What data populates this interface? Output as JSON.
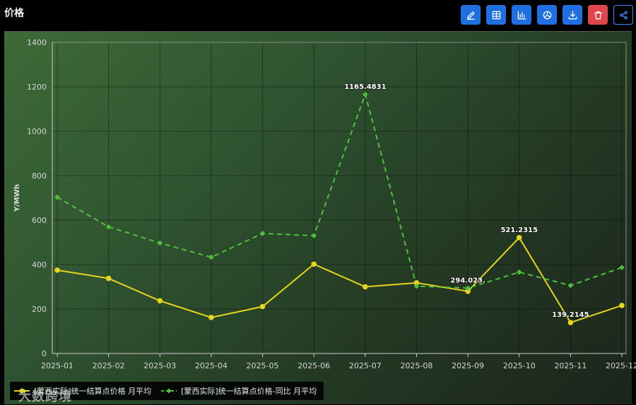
{
  "header": {
    "title": "价格",
    "buttons": [
      {
        "name": "edit-button",
        "icon": "pencil-icon"
      },
      {
        "name": "table-view-button",
        "icon": "table-icon"
      },
      {
        "name": "bar-chart-button",
        "icon": "bar-chart-icon"
      },
      {
        "name": "pie-chart-button",
        "icon": "pie-chart-icon"
      },
      {
        "name": "download-button",
        "icon": "download-icon"
      },
      {
        "name": "delete-button",
        "icon": "trash-icon"
      },
      {
        "name": "share-button",
        "icon": "share-icon"
      }
    ]
  },
  "colors": {
    "series1": "#e6d51c",
    "series2": "#4fbf3f",
    "toolbar_blue": "#1f6fe0",
    "toolbar_red": "#e0474c"
  },
  "watermark": "大数跨境",
  "chart_data": {
    "type": "line",
    "ylabel": "Y/MWh",
    "xlabel": "",
    "ylim": [
      0,
      1400
    ],
    "yticks": [
      0,
      200,
      400,
      600,
      800,
      1000,
      1200,
      1400
    ],
    "grid": true,
    "legend_position": "bottom-left",
    "categories": [
      "2025-01",
      "2025-02",
      "2025-03",
      "2025-04",
      "2025-05",
      "2025-06",
      "2025-07",
      "2025-08",
      "2025-09",
      "2025-10",
      "2025-11",
      "2025-12"
    ],
    "series": [
      {
        "name": "[蒙西实际]统一结算点价格 月平均",
        "style": "solid",
        "marker": "circle",
        "values": [
          375,
          338,
          237,
          162,
          211,
          402,
          300,
          318,
          280,
          521.2315,
          139.2145,
          216
        ]
      },
      {
        "name": "[蒙西实际]统一结算点价格-同比 月平均",
        "style": "dashed",
        "marker": "diamond",
        "values": [
          703,
          570,
          497,
          433,
          540,
          530,
          1165.4831,
          303,
          294.023,
          366,
          306,
          387
        ]
      }
    ],
    "annotations": [
      {
        "series": 1,
        "index": 6,
        "text": "1165.4831"
      },
      {
        "series": 1,
        "index": 8,
        "text": "294.023."
      },
      {
        "series": 0,
        "index": 9,
        "text": "521.2315"
      },
      {
        "series": 0,
        "index": 10,
        "text": "139.2145"
      }
    ]
  }
}
